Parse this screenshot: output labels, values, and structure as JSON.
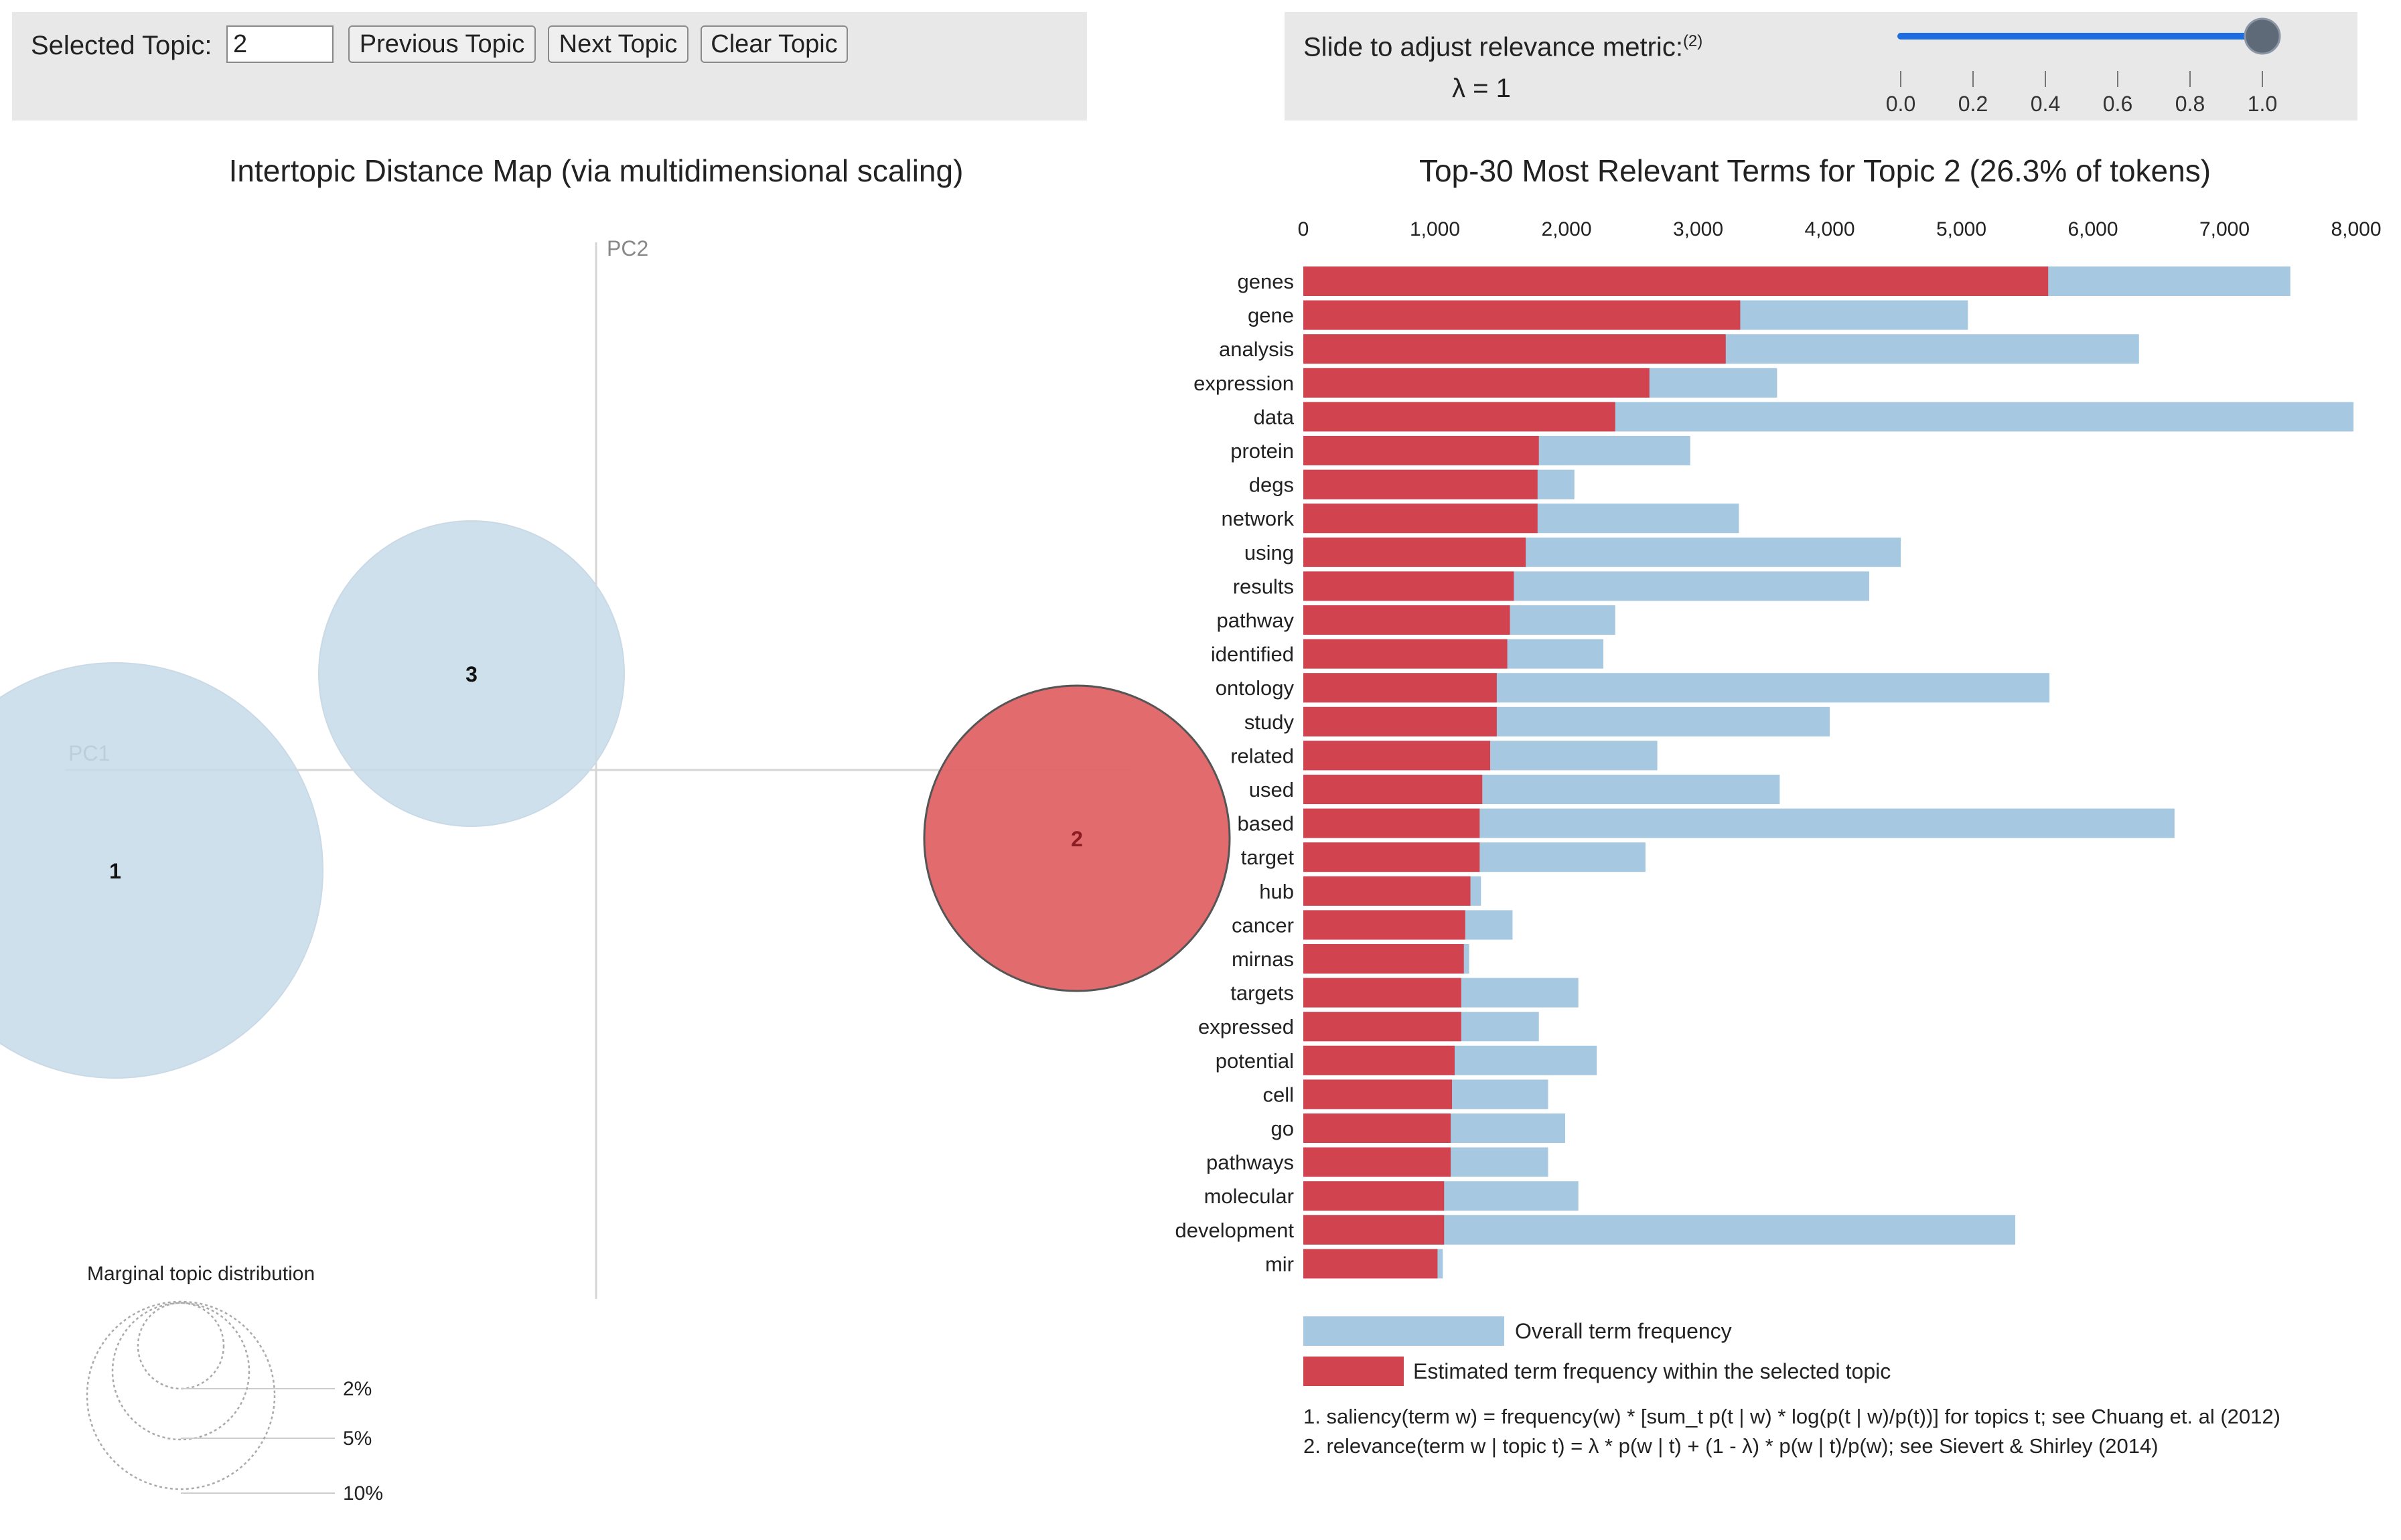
{
  "controls": {
    "selected_topic_label": "Selected Topic:",
    "selected_topic_value": "2",
    "previous_button": "Previous Topic",
    "next_button": "Next Topic",
    "clear_button": "Clear Topic",
    "slider_label": "Slide to adjust relevance metric:",
    "slider_footnote_ref": "(2)",
    "lambda_text": "λ = 1",
    "lambda_value": 1,
    "slider_ticks": [
      "0.0",
      "0.2",
      "0.4",
      "0.6",
      "0.8",
      "1.0"
    ]
  },
  "left_title": "Intertopic Distance Map (via multidimensional scaling)",
  "right_title": "Top-30 Most Relevant Terms for Topic 2 (26.3% of tokens)",
  "map": {
    "axis_x_label": "PC1",
    "axis_y_label": "PC2",
    "topics": [
      {
        "id": "1",
        "selected": false
      },
      {
        "id": "3",
        "selected": false
      },
      {
        "id": "2",
        "selected": true
      }
    ],
    "marginal_title": "Marginal topic distribution",
    "marginal_labels": [
      "2%",
      "5%",
      "10%"
    ]
  },
  "colors": {
    "overall": "#a6c8e0",
    "topic": "#d1434f",
    "circle": "#c7dbea",
    "selected_circle": "#e06366",
    "slider": "#1d6ce0"
  },
  "chart_data": {
    "type": "bar",
    "orientation": "horizontal",
    "title": "Top-30 Most Relevant Terms for Topic 2 (26.3% of tokens)",
    "xlim": [
      0,
      8000
    ],
    "x_ticks": [
      0,
      1000,
      2000,
      3000,
      4000,
      5000,
      6000,
      7000,
      8000
    ],
    "x_tick_labels": [
      "0",
      "1,000",
      "2,000",
      "3,000",
      "4,000",
      "5,000",
      "6,000",
      "7,000",
      "8,000"
    ],
    "categories": [
      "genes",
      "gene",
      "analysis",
      "expression",
      "data",
      "protein",
      "degs",
      "network",
      "using",
      "results",
      "pathway",
      "identified",
      "ontology",
      "study",
      "related",
      "used",
      "based",
      "target",
      "hub",
      "cancer",
      "mirnas",
      "targets",
      "expressed",
      "potential",
      "cell",
      "go",
      "pathways",
      "molecular",
      "development",
      "mir"
    ],
    "series": [
      {
        "name": "Overall term frequency",
        "values": [
          7500,
          5050,
          6350,
          3600,
          7980,
          2940,
          2060,
          3310,
          4540,
          4300,
          2370,
          2280,
          5670,
          4000,
          2690,
          3620,
          6620,
          2600,
          1350,
          1590,
          1260,
          2090,
          1790,
          2230,
          1860,
          1990,
          1860,
          2090,
          5410,
          1060
        ]
      },
      {
        "name": "Estimated term frequency within the selected topic",
        "values": [
          5660,
          3320,
          3210,
          2630,
          2370,
          1790,
          1780,
          1780,
          1690,
          1600,
          1570,
          1550,
          1470,
          1470,
          1420,
          1360,
          1340,
          1340,
          1270,
          1230,
          1220,
          1200,
          1200,
          1150,
          1130,
          1120,
          1120,
          1070,
          1070,
          1020
        ]
      }
    ],
    "legend": [
      "Overall term frequency",
      "Estimated term frequency within the selected topic"
    ]
  },
  "footnotes": [
    "1. saliency(term w) = frequency(w) * [sum_t p(t | w) * log(p(t | w)/p(t))] for topics t; see Chuang et. al (2012)",
    "2. relevance(term w | topic t) = λ * p(w | t) + (1 - λ) * p(w | t)/p(w); see Sievert & Shirley (2014)"
  ]
}
